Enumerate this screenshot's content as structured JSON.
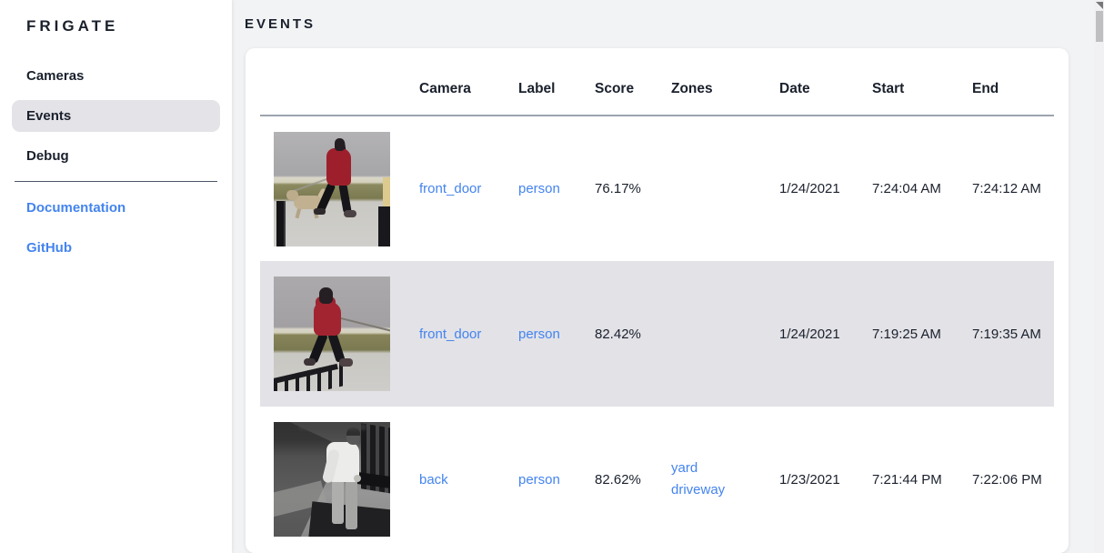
{
  "colors": {
    "text_dark": "#1a202c",
    "link_blue": "#4484ee",
    "main_bg": "#f2f3f5",
    "selected_bg": "#e3e3e8",
    "row_highlight_bg": "#e2e2e7",
    "card_bg": "#ffffff",
    "header_underline": "#9ca3af"
  },
  "sidebar": {
    "logo": "FRIGATE",
    "items": [
      {
        "label": "Cameras",
        "selected": false
      },
      {
        "label": "Events",
        "selected": true
      },
      {
        "label": "Debug",
        "selected": false
      }
    ],
    "links": [
      {
        "label": "Documentation"
      },
      {
        "label": "GitHub"
      }
    ]
  },
  "header": {
    "title": "EVENTS"
  },
  "table": {
    "columns": [
      "Camera",
      "Label",
      "Score",
      "Zones",
      "Date",
      "Start",
      "End"
    ]
  },
  "events": [
    {
      "camera": "front_door",
      "label": "person",
      "score": "76.17%",
      "zones": [],
      "date": "1/24/2021",
      "start": "7:24:04 AM",
      "end": "7:24:12 AM",
      "thumbnail": "person-in-red-coat-walking-dog-on-sidewalk",
      "highlighted": false
    },
    {
      "camera": "front_door",
      "label": "person",
      "score": "82.42%",
      "zones": [],
      "date": "1/24/2021",
      "start": "7:19:25 AM",
      "end": "7:19:35 AM",
      "thumbnail": "person-in-red-hoodie-with-leash-near-railing",
      "highlighted": true
    },
    {
      "camera": "back",
      "label": "person",
      "score": "82.62%",
      "zones": [
        "yard",
        "driveway"
      ],
      "date": "1/23/2021",
      "start": "7:21:44 PM",
      "end": "7:22:06 PM",
      "thumbnail": "night-ir-person-in-white-shirt-by-fence",
      "highlighted": false
    }
  ]
}
